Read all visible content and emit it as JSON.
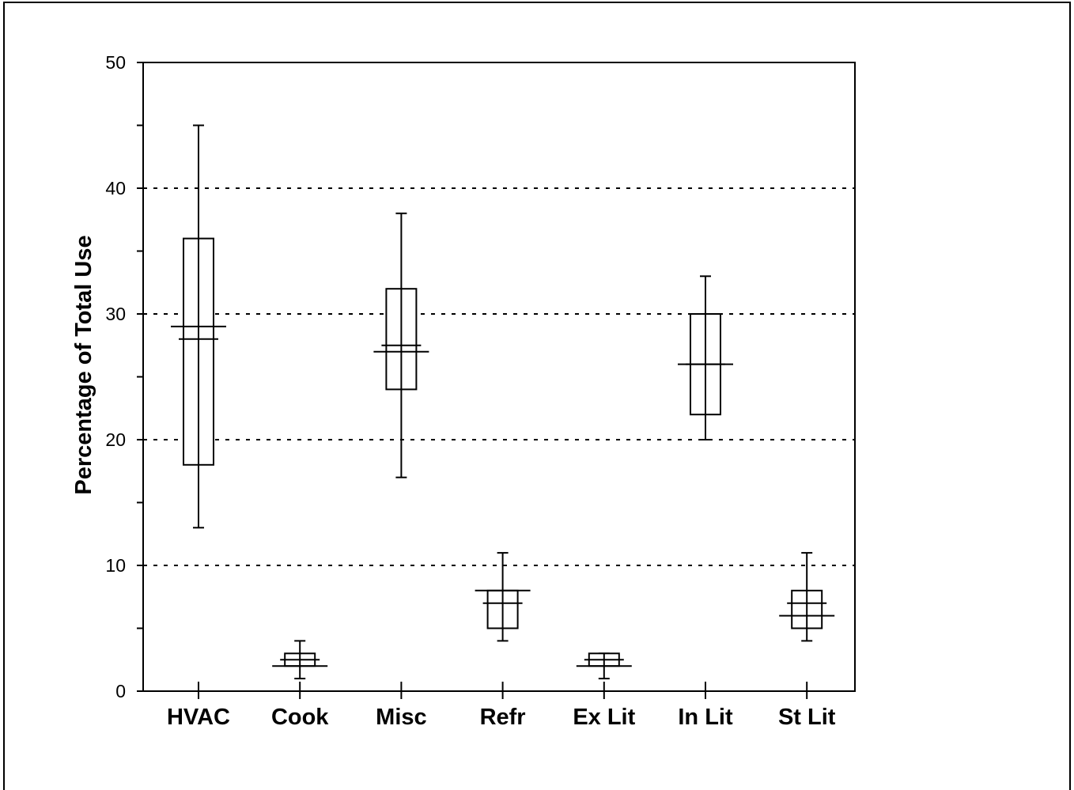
{
  "chart_data": {
    "type": "box",
    "title": "",
    "xlabel": "",
    "ylabel": "Percentage of Total Use",
    "ylim": [
      0,
      50
    ],
    "yticks": [
      "0",
      "10",
      "20",
      "30",
      "40",
      "50"
    ],
    "grid": "horizontal dashed at 10, 20, 30, 40",
    "categories": [
      "HVAC",
      "Cook",
      "Misc",
      "Refr",
      "Ex Lit",
      "In Lit",
      "St Lit"
    ],
    "boxes": [
      {
        "category": "HVAC",
        "min": 13,
        "q1": 18,
        "median": 28,
        "mean": 29,
        "q3": 36,
        "max": 45
      },
      {
        "category": "Cook",
        "min": 1,
        "q1": 2,
        "median": 2.5,
        "mean": 2,
        "q3": 3,
        "max": 4
      },
      {
        "category": "Misc",
        "min": 17,
        "q1": 24,
        "median": 27.5,
        "mean": 27,
        "q3": 32,
        "max": 38
      },
      {
        "category": "Refr",
        "min": 4,
        "q1": 5,
        "median": 7,
        "mean": 8,
        "q3": 8,
        "max": 11
      },
      {
        "category": "Ex Lit",
        "min": 1,
        "q1": 2,
        "median": 2.5,
        "mean": 2,
        "q3": 3,
        "max": 3
      },
      {
        "category": "In Lit",
        "min": 20,
        "q1": 22,
        "median": 26,
        "mean": 26,
        "q3": 30,
        "max": 33
      },
      {
        "category": "St Lit",
        "min": 4,
        "q1": 5,
        "median": 7,
        "mean": 6,
        "q3": 8,
        "max": 11
      }
    ]
  }
}
